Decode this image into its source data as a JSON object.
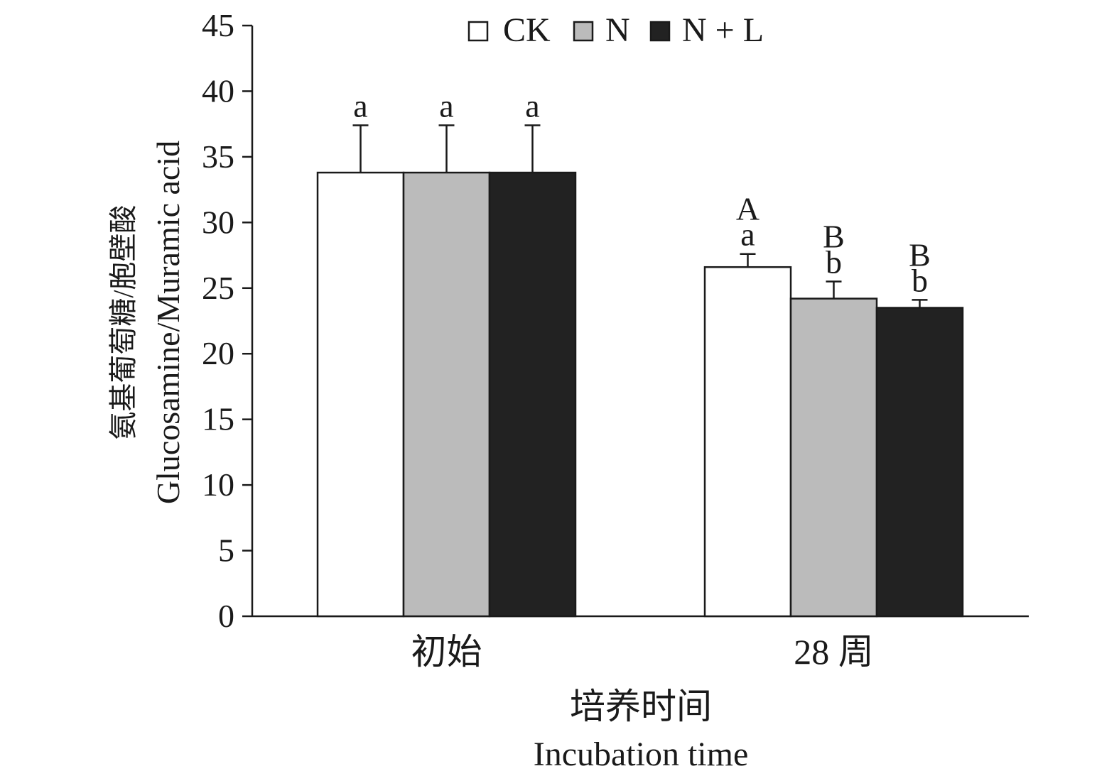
{
  "chart_data": {
    "type": "bar",
    "title": "",
    "ylabel_cn": "氨基葡萄糖/胞壁酸",
    "ylabel_en": "Glucosamine/Muramic acid",
    "xlabel_cn": "培养时间",
    "xlabel_en": "Incubation time",
    "ylim": [
      0,
      45
    ],
    "yticks": [
      "0",
      "5",
      "10",
      "15",
      "20",
      "25",
      "30",
      "35",
      "40",
      "45"
    ],
    "categories": [
      "初始",
      "28 周"
    ],
    "legend_position": "top-center",
    "grid": false,
    "series": [
      {
        "name": "CK",
        "color": "#ffffff",
        "values": [
          33.8,
          26.6
        ],
        "errors": [
          3.6,
          1.0
        ],
        "upper_labels": [
          "",
          "A"
        ],
        "lower_labels": [
          "a",
          "a"
        ]
      },
      {
        "name": "N",
        "color": "#bbbbbb",
        "values": [
          33.8,
          24.2
        ],
        "errors": [
          3.6,
          1.3
        ],
        "upper_labels": [
          "",
          "B"
        ],
        "lower_labels": [
          "a",
          "b"
        ]
      },
      {
        "name": "N + L",
        "color": "#222222",
        "values": [
          33.8,
          23.5
        ],
        "errors": [
          3.6,
          0.6
        ],
        "upper_labels": [
          "",
          "B"
        ],
        "lower_labels": [
          "a",
          "b"
        ]
      }
    ]
  }
}
